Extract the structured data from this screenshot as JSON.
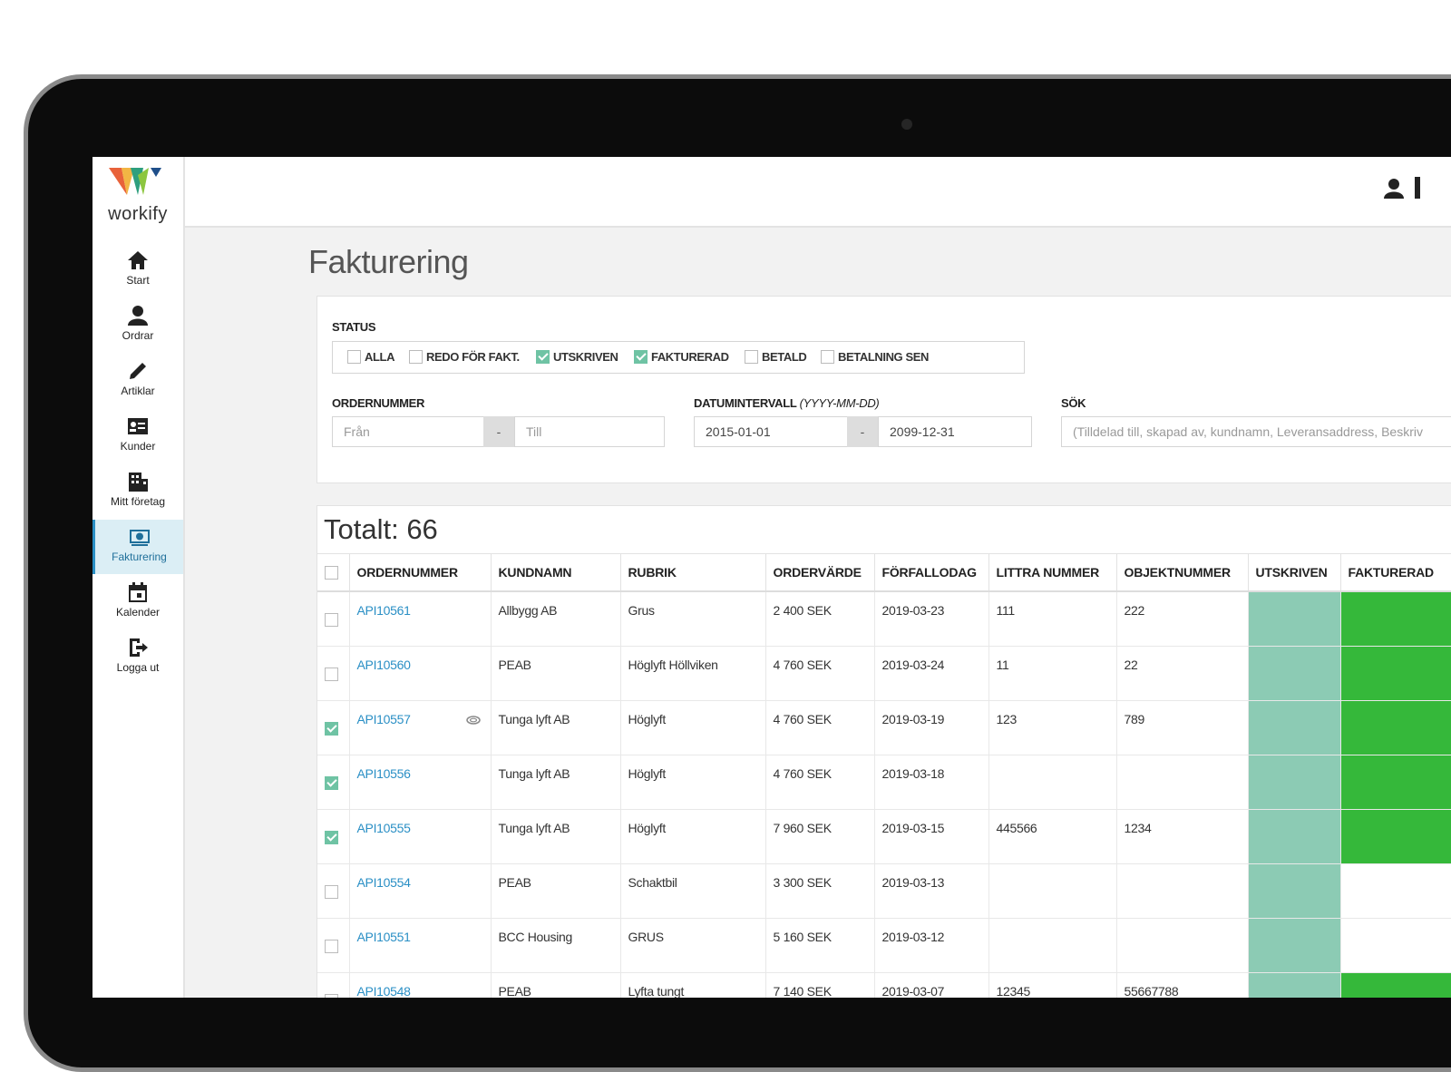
{
  "brand": "workify",
  "nav": [
    {
      "label": "Start",
      "icon": "home",
      "active": false
    },
    {
      "label": "Ordrar",
      "icon": "user",
      "active": false
    },
    {
      "label": "Artiklar",
      "icon": "pen",
      "active": false
    },
    {
      "label": "Kunder",
      "icon": "card",
      "active": false
    },
    {
      "label": "Mitt företag",
      "icon": "building",
      "active": false
    },
    {
      "label": "Fakturering",
      "icon": "money",
      "active": true
    },
    {
      "label": "Kalender",
      "icon": "calendar",
      "active": false
    },
    {
      "label": "Logga ut",
      "icon": "logout",
      "active": false
    }
  ],
  "page_title": "Fakturering",
  "filters": {
    "status_label": "STATUS",
    "status_options": [
      {
        "label": "ALLA",
        "checked": false
      },
      {
        "label": "REDO FÖR FAKT.",
        "checked": false
      },
      {
        "label": "UTSKRIVEN",
        "checked": true
      },
      {
        "label": "FAKTURERAD",
        "checked": true
      },
      {
        "label": "BETALD",
        "checked": false
      },
      {
        "label": "BETALNING SEN",
        "checked": false
      }
    ],
    "order_label": "ORDERNUMMER",
    "order_from": "Från",
    "order_to": "Till",
    "range_separator": "-",
    "date_label": "DATUMINTERVALL",
    "date_format": "(YYYY-MM-DD)",
    "date_from": "2015-01-01",
    "date_to": "2099-12-31",
    "search_label": "SÖK",
    "search_placeholder": "(Tilldelad till, skapad av, kundnamn, Leveransaddress, Beskriv"
  },
  "total": "Totalt: 66",
  "table": {
    "utskriven_color": "#8ccbb4",
    "fakturerad_color": "#35b83a",
    "columns": [
      "ORDERNUMMER",
      "KUNDNAMN",
      "RUBRIK",
      "ORDERVÄRDE",
      "FÖRFALLODAG",
      "LITTRA NUMMER",
      "OBJEKTNUMMER",
      "UTSKRIVEN",
      "FAKTURERAD"
    ],
    "rows": [
      {
        "checked": false,
        "attachment": false,
        "cells": [
          "API10561",
          "Allbygg AB",
          "Grus",
          "2 400 SEK",
          "2019-03-23",
          "111",
          "222"
        ],
        "utskriven": true,
        "fakturerad": true
      },
      {
        "checked": false,
        "attachment": false,
        "cells": [
          "API10560",
          "PEAB",
          "Höglyft Höllviken",
          "4 760 SEK",
          "2019-03-24",
          "11",
          "22"
        ],
        "utskriven": true,
        "fakturerad": true
      },
      {
        "checked": true,
        "attachment": true,
        "cells": [
          "API10557",
          "Tunga lyft AB",
          "Höglyft",
          "4 760 SEK",
          "2019-03-19",
          "123",
          "789"
        ],
        "utskriven": true,
        "fakturerad": true
      },
      {
        "checked": true,
        "attachment": false,
        "cells": [
          "API10556",
          "Tunga lyft AB",
          "Höglyft",
          "4 760 SEK",
          "2019-03-18",
          null,
          null
        ],
        "utskriven": true,
        "fakturerad": true
      },
      {
        "checked": true,
        "attachment": false,
        "cells": [
          "API10555",
          "Tunga lyft AB",
          "Höglyft",
          "7 960 SEK",
          "2019-03-15",
          "445566",
          "1234"
        ],
        "utskriven": true,
        "fakturerad": true
      },
      {
        "checked": false,
        "attachment": false,
        "cells": [
          "API10554",
          "PEAB",
          "Schaktbil",
          "3 300 SEK",
          "2019-03-13",
          null,
          null
        ],
        "utskriven": true,
        "fakturerad": false
      },
      {
        "checked": false,
        "attachment": false,
        "cells": [
          "API10551",
          "BCC Housing",
          "GRUS",
          "5 160 SEK",
          "2019-03-12",
          null,
          null
        ],
        "utskriven": true,
        "fakturerad": false
      },
      {
        "checked": false,
        "attachment": false,
        "cells": [
          "API10548",
          "PEAB",
          "Lyfta tungt",
          "7 140 SEK",
          "2019-03-07",
          "12345",
          "55667788"
        ],
        "utskriven": true,
        "fakturerad": true
      }
    ]
  }
}
